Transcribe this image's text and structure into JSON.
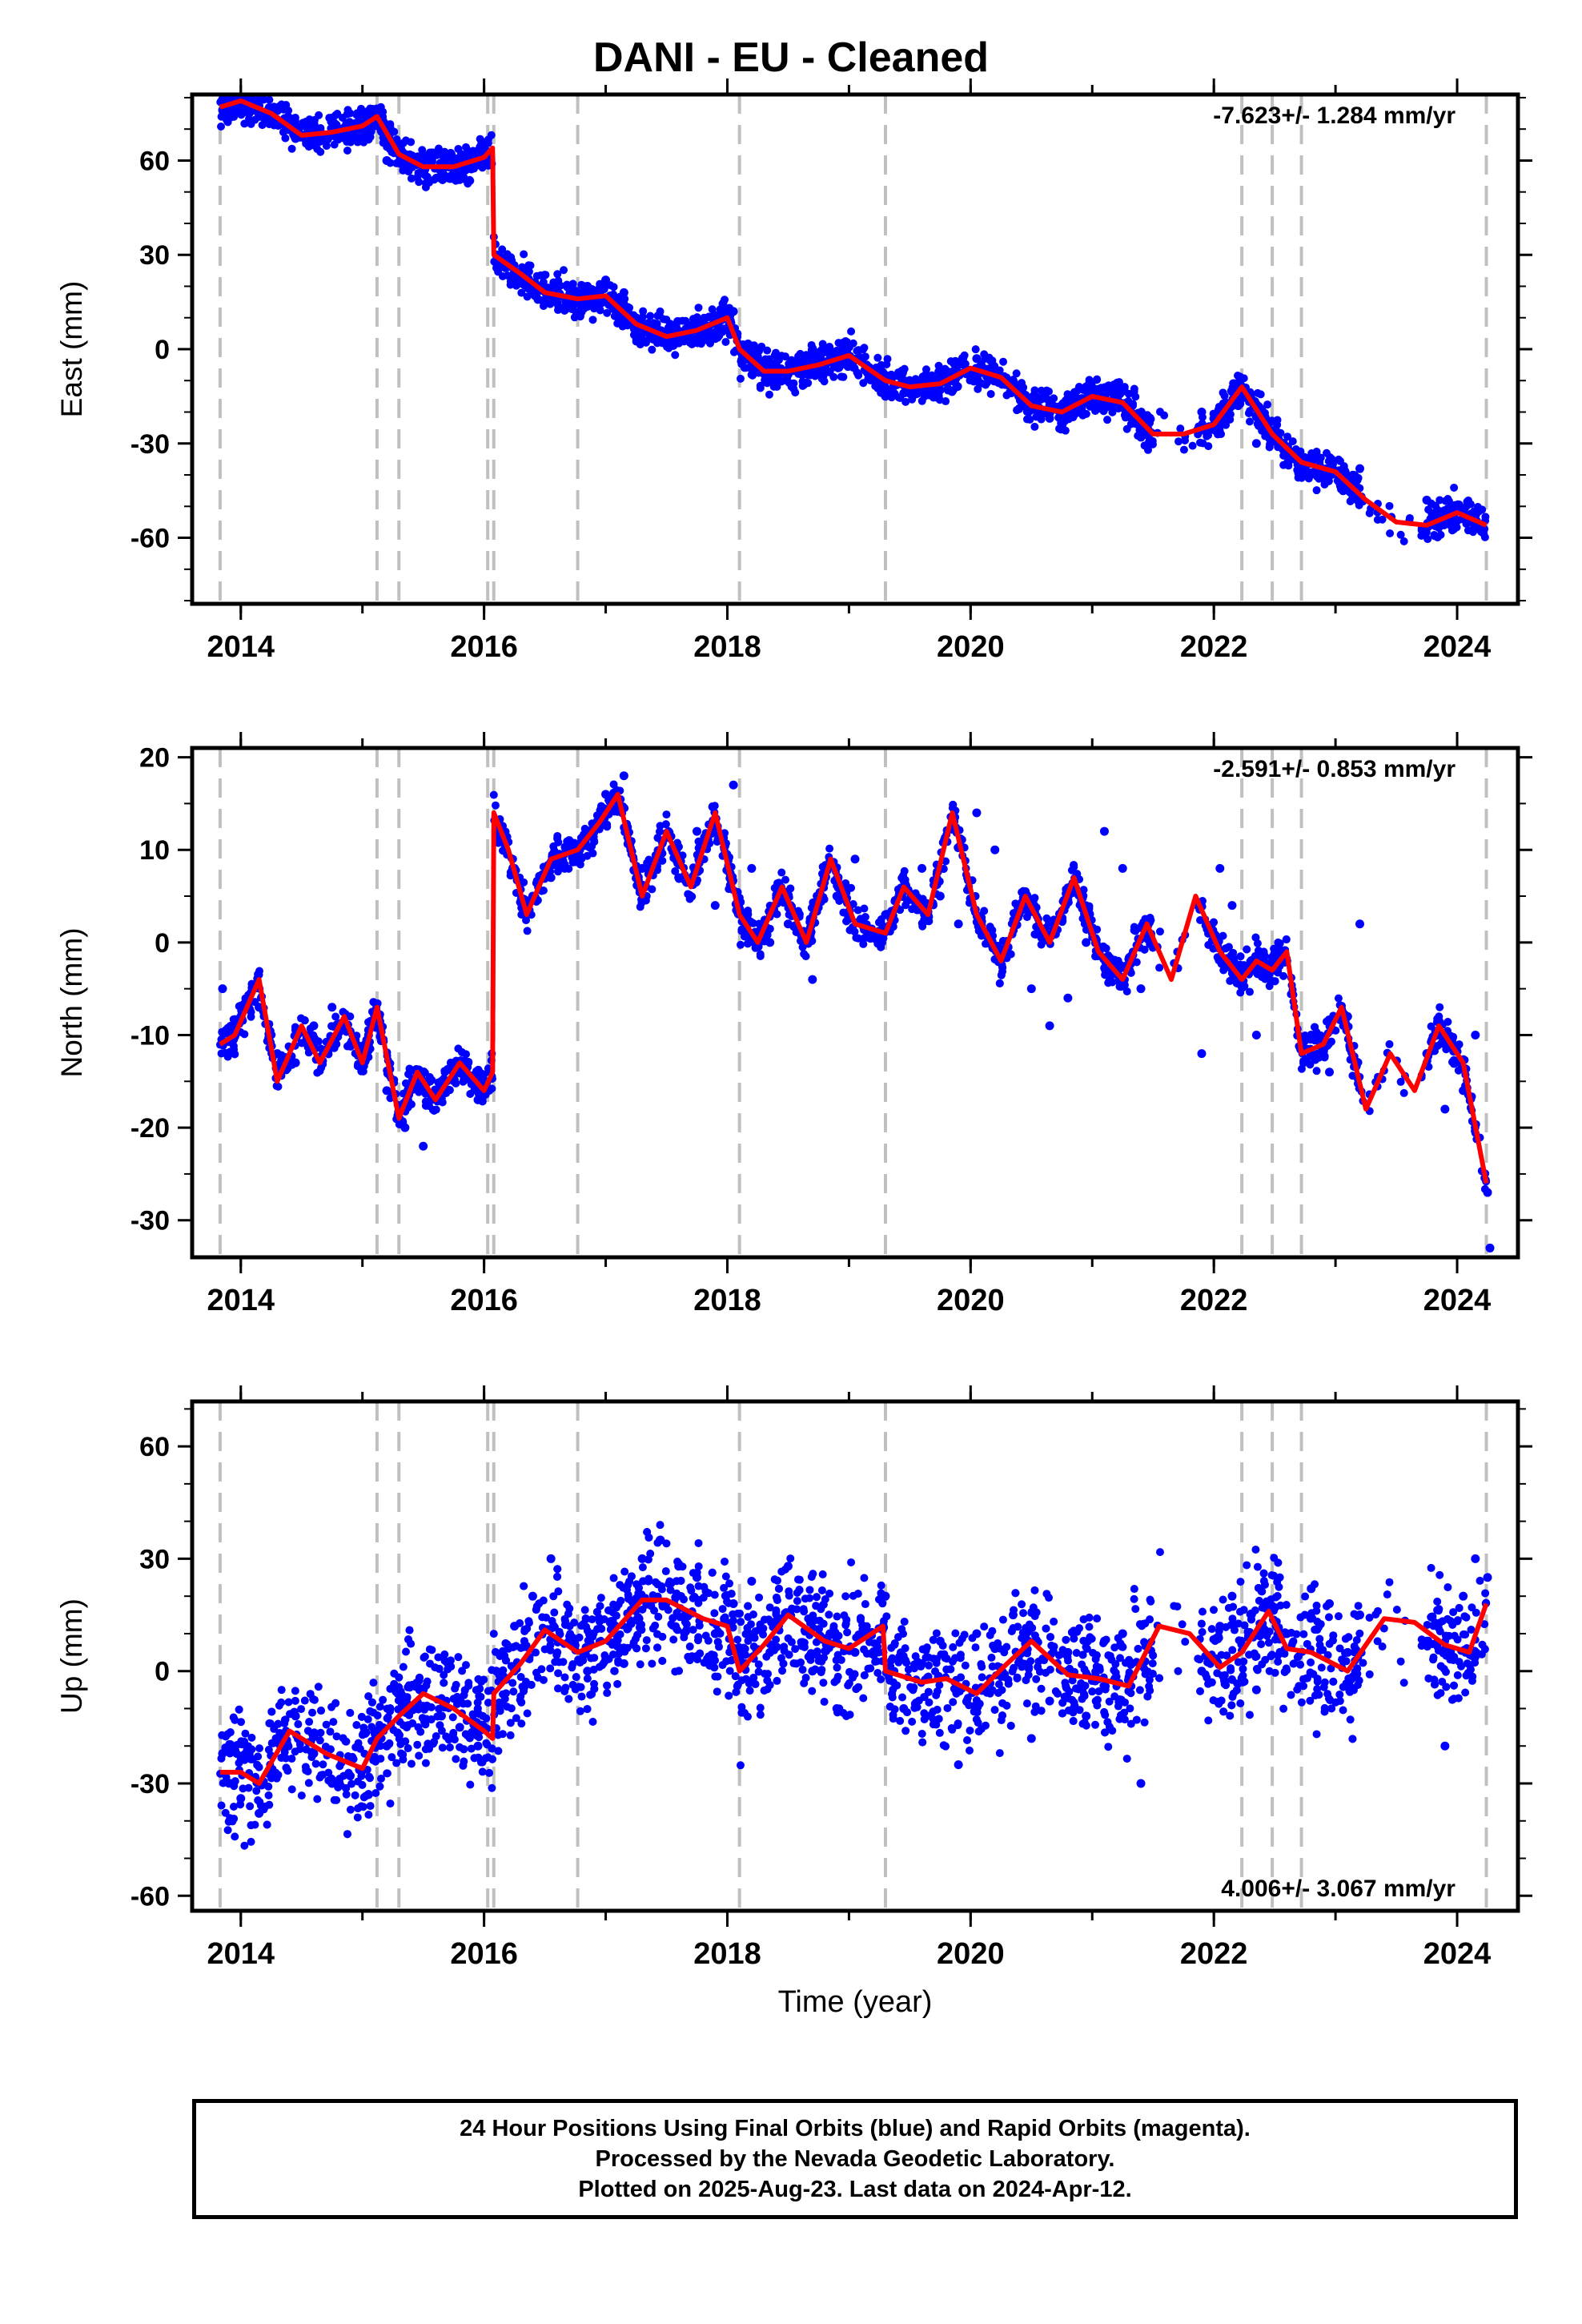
{
  "title": "DANI  - EU - Cleaned",
  "caption": {
    "line1": "24 Hour Positions Using Final Orbits (blue) and Rapid Orbits (magenta).",
    "line2": "Processed by the Nevada Geodetic Laboratory.",
    "line3": "Plotted on 2025-Aug-23. Last data on 2024-Apr-12."
  },
  "colors": {
    "points": "#0000ff",
    "model": "#ff0000",
    "events": "#c0c0c0",
    "frame": "#000000"
  },
  "chart_data": [
    {
      "type": "scatter",
      "name": "east",
      "title": "",
      "xlabel": "",
      "ylabel": "East (mm)",
      "rate_text": "-7.623+/- 1.284 mm/yr",
      "rate_position": "top-right",
      "xlim": [
        2013.6,
        2024.5
      ],
      "ylim": [
        -81,
        81
      ],
      "xticks": [
        2014,
        2016,
        2018,
        2020,
        2022,
        2024
      ],
      "yticks": [
        -60,
        -30,
        0,
        30,
        60
      ],
      "grid": false,
      "events": [
        2013.83,
        2015.12,
        2015.3,
        2016.03,
        2016.08,
        2016.77,
        2018.1,
        2019.3,
        2022.23,
        2022.48,
        2022.72,
        2024.24
      ],
      "model": {
        "x": [
          2013.83,
          2014.0,
          2014.25,
          2014.5,
          2014.75,
          2015.0,
          2015.12,
          2015.3,
          2015.5,
          2015.75,
          2016.0,
          2016.07,
          2016.08,
          2016.3,
          2016.5,
          2016.77,
          2017.0,
          2017.25,
          2017.5,
          2017.75,
          2018.0,
          2018.1,
          2018.3,
          2018.5,
          2018.75,
          2019.0,
          2019.3,
          2019.5,
          2019.75,
          2020.0,
          2020.25,
          2020.5,
          2020.75,
          2021.0,
          2021.25,
          2021.5,
          2021.75,
          2022.0,
          2022.23,
          2022.48,
          2022.72,
          2023.0,
          2023.25,
          2023.5,
          2023.75,
          2024.0,
          2024.24
        ],
        "y": [
          77,
          79,
          75,
          68,
          69,
          71,
          74,
          62,
          58,
          58,
          61,
          64,
          30,
          24,
          18,
          16,
          17,
          8,
          4,
          6,
          10,
          0,
          -7,
          -7,
          -5,
          -2,
          -10,
          -12,
          -11,
          -6,
          -9,
          -18,
          -20,
          -15,
          -17,
          -27,
          -27,
          -24,
          -12,
          -27,
          -36,
          -39,
          -48,
          -55,
          -56,
          -52,
          -56
        ]
      },
      "points": {
        "x": [
          2013.85,
          2014.0,
          2014.15,
          2014.3,
          2014.45,
          2014.6,
          2014.75,
          2014.9,
          2015.05,
          2015.2,
          2015.35,
          2015.5,
          2015.65,
          2015.8,
          2015.95,
          2016.1,
          2016.25,
          2016.4,
          2016.55,
          2016.7,
          2016.85,
          2017.0,
          2017.15,
          2017.3,
          2017.45,
          2017.6,
          2017.75,
          2017.9,
          2018.05,
          2018.2,
          2018.35,
          2018.5,
          2018.65,
          2018.8,
          2018.95,
          2019.1,
          2019.3,
          2019.45,
          2019.6,
          2019.75,
          2019.9,
          2020.05,
          2020.2,
          2020.35,
          2020.5,
          2020.65,
          2020.8,
          2020.95,
          2021.1,
          2021.25,
          2021.4,
          2021.9,
          2022.0,
          2022.1,
          2022.2,
          2022.35,
          2022.6,
          2022.75,
          2022.9,
          2023.05,
          2023.2,
          2023.75,
          2023.9,
          2024.05,
          2024.2
        ],
        "y": [
          76,
          78,
          80,
          73,
          67,
          65,
          70,
          68,
          72,
          60,
          62,
          58,
          59,
          60,
          63,
          30,
          25,
          20,
          17,
          15,
          20,
          22,
          18,
          5,
          3,
          2,
          6,
          9,
          12,
          -2,
          -6,
          -8,
          -6,
          -4,
          0,
          -3,
          -15,
          -14,
          -10,
          -13,
          -5,
          -3,
          -8,
          -10,
          -18,
          -22,
          -20,
          -12,
          -14,
          -18,
          -28,
          -20,
          -24,
          -22,
          -18,
          -30,
          -33,
          -38,
          -40,
          -42,
          -38,
          -48,
          -55,
          -52,
          -58
        ]
      }
    },
    {
      "type": "scatter",
      "name": "north",
      "title": "",
      "xlabel": "",
      "ylabel": "North (mm)",
      "rate_text": "-2.591+/- 0.853 mm/yr",
      "rate_position": "top-right",
      "xlim": [
        2013.6,
        2024.5
      ],
      "ylim": [
        -34,
        21
      ],
      "xticks": [
        2014,
        2016,
        2018,
        2020,
        2022,
        2024
      ],
      "yticks": [
        -30,
        -20,
        -10,
        0,
        10,
        20
      ],
      "grid": false,
      "events": [
        2013.83,
        2015.12,
        2015.3,
        2016.03,
        2016.08,
        2016.77,
        2018.1,
        2019.3,
        2022.23,
        2022.48,
        2022.72,
        2024.24
      ],
      "model": {
        "x": [
          2013.83,
          2013.95,
          2014.15,
          2014.3,
          2014.5,
          2014.65,
          2014.85,
          2015.0,
          2015.12,
          2015.3,
          2015.45,
          2015.6,
          2015.8,
          2016.0,
          2016.07,
          2016.08,
          2016.2,
          2016.35,
          2016.55,
          2016.77,
          2016.95,
          2017.1,
          2017.3,
          2017.5,
          2017.7,
          2017.9,
          2018.1,
          2018.25,
          2018.45,
          2018.65,
          2018.85,
          2019.05,
          2019.3,
          2019.45,
          2019.65,
          2019.85,
          2020.05,
          2020.25,
          2020.45,
          2020.65,
          2020.85,
          2021.05,
          2021.25,
          2021.45,
          2021.65,
          2021.85,
          2022.05,
          2022.23,
          2022.35,
          2022.48,
          2022.6,
          2022.72,
          2022.9,
          2023.05,
          2023.25,
          2023.45,
          2023.65,
          2023.85,
          2024.05,
          2024.24
        ],
        "y": [
          -11,
          -10,
          -4,
          -15,
          -9,
          -13,
          -8,
          -13,
          -7,
          -19,
          -14,
          -17,
          -13,
          -16,
          -14,
          14,
          10,
          3,
          9,
          10,
          13,
          16,
          5,
          12,
          6,
          14,
          3,
          0,
          6,
          0,
          9,
          2,
          1,
          6,
          3,
          14,
          3,
          -2,
          5,
          0,
          7,
          -1,
          -4,
          2,
          -4,
          5,
          -1,
          -4,
          -2,
          -3,
          -1,
          -12,
          -11,
          -7,
          -18,
          -12,
          -16,
          -9,
          -13,
          -26
        ]
      },
      "points": {
        "x": [
          2013.85,
          2014.0,
          2014.15,
          2014.3,
          2014.45,
          2014.6,
          2014.75,
          2014.9,
          2015.05,
          2015.2,
          2015.35,
          2015.5,
          2015.65,
          2015.8,
          2015.95,
          2016.1,
          2016.25,
          2016.4,
          2016.55,
          2016.7,
          2016.85,
          2017.0,
          2017.15,
          2017.3,
          2017.45,
          2017.6,
          2017.75,
          2017.9,
          2018.05,
          2018.2,
          2018.35,
          2018.5,
          2018.7,
          2018.9,
          2019.05,
          2019.3,
          2019.45,
          2019.6,
          2019.75,
          2019.9,
          2020.05,
          2020.2,
          2020.35,
          2020.5,
          2020.65,
          2020.8,
          2020.95,
          2021.1,
          2021.25,
          2021.4,
          2021.9,
          2022.05,
          2022.15,
          2022.35,
          2022.6,
          2022.8,
          2022.95,
          2023.1,
          2023.2,
          2023.75,
          2023.9,
          2024.05,
          2024.15,
          2024.25,
          2024.27
        ],
        "y": [
          -5,
          -8,
          -7,
          -12,
          -13,
          -9,
          -7,
          -11,
          -10,
          -16,
          -20,
          -22,
          -15,
          -14,
          -17,
          11,
          8,
          5,
          7,
          11,
          12,
          16,
          18,
          8,
          10,
          7,
          12,
          4,
          17,
          8,
          0,
          2,
          -4,
          5,
          9,
          3,
          6,
          8,
          5,
          2,
          14,
          10,
          2,
          -5,
          -9,
          -6,
          0,
          12,
          8,
          -5,
          -12,
          8,
          4,
          -10,
          -2,
          -10,
          -14,
          -8,
          2,
          -12,
          -18,
          -16,
          -10,
          -27,
          -33
        ]
      }
    },
    {
      "type": "scatter",
      "name": "up",
      "title": "",
      "xlabel": "Time (year)",
      "ylabel": "Up (mm)",
      "rate_text": "4.006+/- 3.067 mm/yr",
      "rate_position": "bottom-right",
      "xlim": [
        2013.6,
        2024.5
      ],
      "ylim": [
        -64,
        72
      ],
      "xticks": [
        2014,
        2016,
        2018,
        2020,
        2022,
        2024
      ],
      "yticks": [
        -60,
        -30,
        0,
        30,
        60
      ],
      "grid": false,
      "events": [
        2013.83,
        2015.12,
        2015.3,
        2016.03,
        2016.08,
        2016.77,
        2018.1,
        2019.3,
        2022.23,
        2022.48,
        2022.72,
        2024.24
      ],
      "model": {
        "x": [
          2013.83,
          2014.0,
          2014.15,
          2014.4,
          2014.7,
          2015.0,
          2015.12,
          2015.3,
          2015.5,
          2015.75,
          2016.0,
          2016.07,
          2016.08,
          2016.3,
          2016.5,
          2016.77,
          2017.0,
          2017.3,
          2017.5,
          2017.8,
          2018.0,
          2018.1,
          2018.3,
          2018.5,
          2018.8,
          2019.0,
          2019.28,
          2019.3,
          2019.6,
          2019.8,
          2020.05,
          2020.3,
          2020.5,
          2020.8,
          2021.05,
          2021.3,
          2021.55,
          2021.8,
          2022.05,
          2022.23,
          2022.45,
          2022.48,
          2022.6,
          2022.8,
          2023.1,
          2023.4,
          2023.65,
          2023.9,
          2024.1,
          2024.24
        ],
        "y": [
          -27,
          -27,
          -30,
          -16,
          -22,
          -26,
          -18,
          -12,
          -6,
          -10,
          -16,
          -18,
          -6,
          2,
          11,
          5,
          8,
          19,
          19,
          14,
          12,
          0,
          7,
          15,
          8,
          6,
          12,
          0,
          -3,
          -2,
          -6,
          2,
          8,
          -1,
          -2,
          -4,
          12,
          10,
          1,
          5,
          16,
          14,
          6,
          5,
          0,
          14,
          13,
          7,
          5,
          18
        ]
      },
      "points": {
        "x": [
          2013.85,
          2014.0,
          2014.15,
          2014.3,
          2014.45,
          2014.6,
          2014.75,
          2014.9,
          2015.05,
          2015.2,
          2015.35,
          2015.5,
          2015.65,
          2015.8,
          2015.95,
          2016.1,
          2016.25,
          2016.4,
          2016.55,
          2016.7,
          2016.85,
          2017.0,
          2017.15,
          2017.3,
          2017.45,
          2017.6,
          2017.75,
          2017.9,
          2018.05,
          2018.2,
          2018.35,
          2018.5,
          2018.7,
          2018.9,
          2019.05,
          2019.3,
          2019.45,
          2019.6,
          2019.75,
          2019.9,
          2020.05,
          2020.2,
          2020.35,
          2020.5,
          2020.65,
          2020.8,
          2020.95,
          2021.1,
          2021.25,
          2021.4,
          2021.9,
          2022.05,
          2022.15,
          2022.35,
          2022.6,
          2022.8,
          2022.95,
          2023.1,
          2023.2,
          2023.75,
          2023.9,
          2024.05,
          2024.15,
          2024.25
        ],
        "y": [
          -22,
          -34,
          -38,
          -18,
          -12,
          -22,
          -30,
          -28,
          -33,
          -20,
          -10,
          -5,
          -12,
          -15,
          -20,
          0,
          12,
          20,
          30,
          8,
          0,
          3,
          2,
          30,
          35,
          28,
          25,
          10,
          18,
          24,
          5,
          28,
          0,
          -10,
          5,
          20,
          -10,
          2,
          8,
          -25,
          10,
          6,
          15,
          -18,
          -8,
          5,
          -12,
          8,
          10,
          -30,
          0,
          12,
          20,
          -5,
          10,
          22,
          18,
          5,
          15,
          8,
          -20,
          20,
          30,
          25
        ]
      }
    }
  ]
}
